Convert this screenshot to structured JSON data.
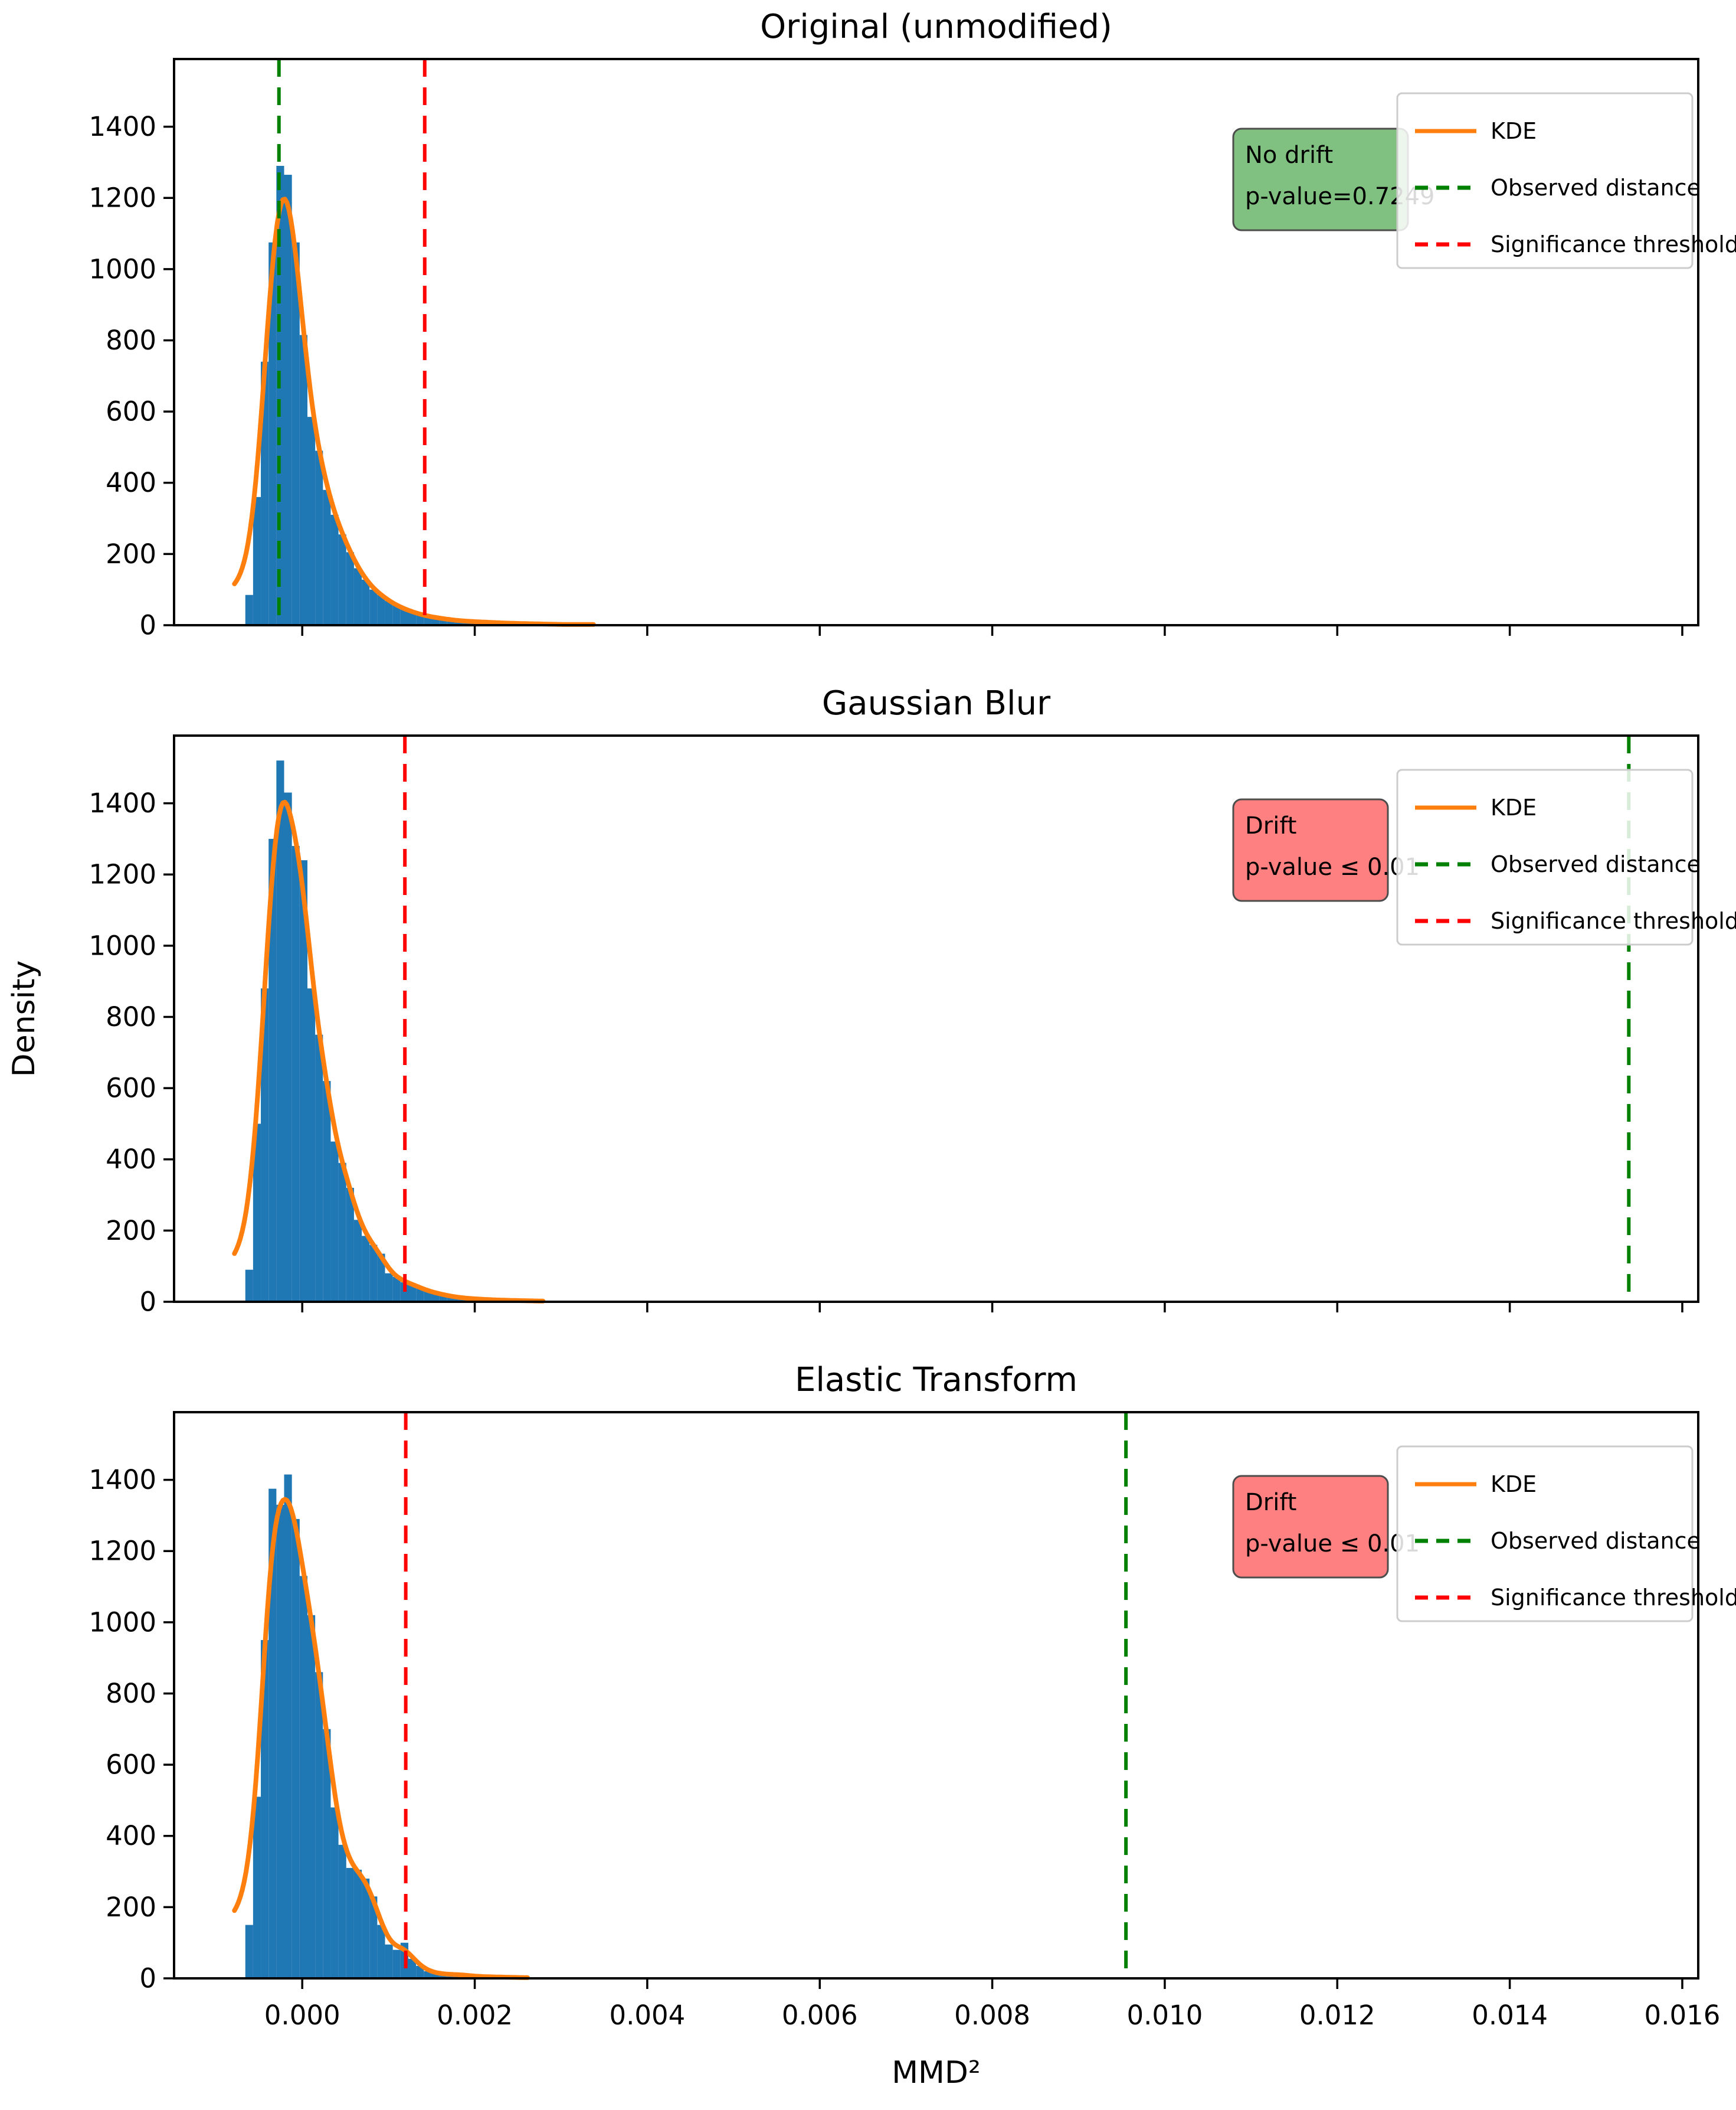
{
  "figure": {
    "xlabel": "MMD²",
    "ylabel": "Density",
    "background": "#ffffff"
  },
  "axis": {
    "xlim": [
      -0.001486,
      0.016185
    ],
    "ylim": [
      0,
      1590
    ],
    "xticks": {
      "values": [
        0.0,
        0.002,
        0.004,
        0.006,
        0.008,
        0.01,
        0.012,
        0.014,
        0.016
      ],
      "labels": [
        "0.000",
        "0.002",
        "0.004",
        "0.006",
        "0.008",
        "0.010",
        "0.012",
        "0.014",
        "0.016"
      ]
    },
    "yticks": {
      "values": [
        0,
        200,
        400,
        600,
        800,
        1000,
        1200,
        1400
      ],
      "labels": [
        "0",
        "200",
        "400",
        "600",
        "800",
        "1000",
        "1200",
        "1400"
      ]
    },
    "grid": false
  },
  "colors": {
    "histogram": "#1f77b4",
    "kde": "#ff7f0e",
    "observed": "#008000",
    "threshold": "#ff0000",
    "no_drift_fill": "#80c080",
    "drift_fill": "#ff8080",
    "box_border": "#4d4d4d",
    "legend_border": "#cccccc",
    "axis": "#000000"
  },
  "legend": {
    "position": "upper right",
    "items": [
      {
        "label": "KDE",
        "color": "#ff7f0e",
        "style": "solid"
      },
      {
        "label": "Observed distance",
        "color": "#008000",
        "style": "dashed"
      },
      {
        "label": "Significance threshold",
        "color": "#ff0000",
        "style": "dashed"
      }
    ]
  },
  "chart_data": [
    {
      "type": "histogram",
      "title": "Original (unmodified)",
      "annotation": {
        "lines": [
          "No drift",
          "p-value=0.7249"
        ],
        "status": "no_drift"
      },
      "observed_distance": -0.00027,
      "significance_threshold": 0.00142,
      "bins": {
        "start": -0.00066,
        "width": 9e-05
      },
      "counts": [
        85,
        360,
        740,
        1075,
        1290,
        1265,
        1075,
        815,
        585,
        490,
        380,
        310,
        255,
        205,
        160,
        128,
        100,
        85,
        68,
        55,
        45,
        38,
        30,
        25,
        22,
        18,
        15,
        13,
        11,
        10,
        9,
        8,
        7,
        6,
        5,
        5,
        4,
        4,
        3,
        3,
        2,
        2,
        2,
        2
      ],
      "ylim": [
        0,
        1590
      ]
    },
    {
      "type": "histogram",
      "title": "Gaussian Blur",
      "annotation": {
        "lines": [
          "Drift",
          "p-value ≤ 0.01"
        ],
        "status": "drift"
      },
      "observed_distance": 0.01538,
      "significance_threshold": 0.00119,
      "bins": {
        "start": -0.00066,
        "width": 9e-05
      },
      "counts": [
        90,
        500,
        880,
        1300,
        1520,
        1430,
        1280,
        1240,
        880,
        750,
        620,
        450,
        390,
        320,
        230,
        185,
        160,
        135,
        80,
        70,
        55,
        50,
        40,
        30,
        25,
        20,
        15,
        12,
        10,
        8,
        7,
        6,
        5,
        4,
        4,
        3,
        3,
        2,
        2,
        2,
        1,
        1,
        1,
        1
      ],
      "ylim": [
        0,
        1590
      ]
    },
    {
      "type": "histogram",
      "title": "Elastic Transform",
      "annotation": {
        "lines": [
          "Drift",
          "p-value ≤ 0.01"
        ],
        "status": "drift"
      },
      "observed_distance": 0.00955,
      "significance_threshold": 0.0012,
      "bins": {
        "start": -0.00066,
        "width": 9e-05
      },
      "counts": [
        150,
        510,
        950,
        1375,
        1330,
        1415,
        1290,
        1130,
        1020,
        860,
        700,
        480,
        375,
        310,
        305,
        280,
        230,
        150,
        95,
        80,
        100,
        55,
        35,
        20,
        15,
        12,
        10,
        12,
        8,
        6,
        5,
        4,
        4,
        3,
        3,
        2,
        2,
        2,
        1,
        1,
        1,
        1,
        1,
        1
      ],
      "ylim": [
        0,
        1590
      ]
    }
  ]
}
